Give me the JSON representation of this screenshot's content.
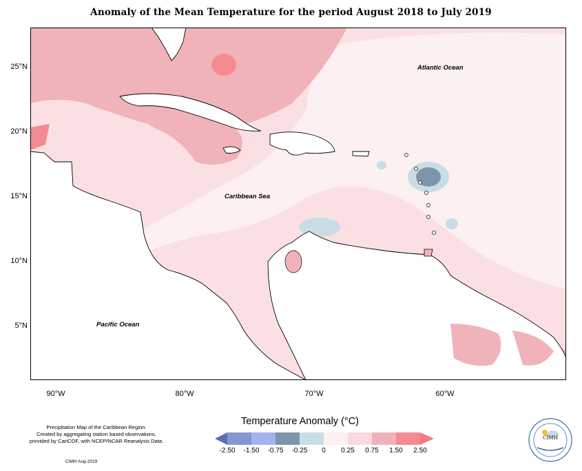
{
  "title": "Anomaly of the Mean Temperature for the period August 2018 to July 2019",
  "y_ticks": [
    "25°N",
    "20°N",
    "15°N",
    "10°N",
    "5°N"
  ],
  "x_ticks": [
    "90°W",
    "80°W",
    "70°W",
    "60°W"
  ],
  "labels": {
    "atlantic": "Atlantic Ocean",
    "caribbean": "Caribbean Sea",
    "pacific": "Pacific Ocean"
  },
  "note_lines": [
    "Precipitation Map of the Caribbean Region.",
    "Created by aggregating station based observations,",
    "provided by CariCOF, with NCEP/NCAR Reanalysis Data."
  ],
  "credit": "CIMH Aug-2019",
  "legend": {
    "title": "Temperature Anomaly (°C)",
    "ticks": [
      "-2.50",
      "-1.50",
      "-0.75",
      "-0.25",
      "0",
      "0.25",
      "0.75",
      "1.50",
      "2.50"
    ],
    "colors": [
      "#5f6fb0",
      "#8596d3",
      "#a4b3f0",
      "#7e94aa",
      "#c8dde6",
      "#fdf0f0",
      "#fbd9de",
      "#f0b3ba",
      "#f58b92",
      "#f27a80"
    ]
  },
  "logo": {
    "name": "CIMH"
  }
}
